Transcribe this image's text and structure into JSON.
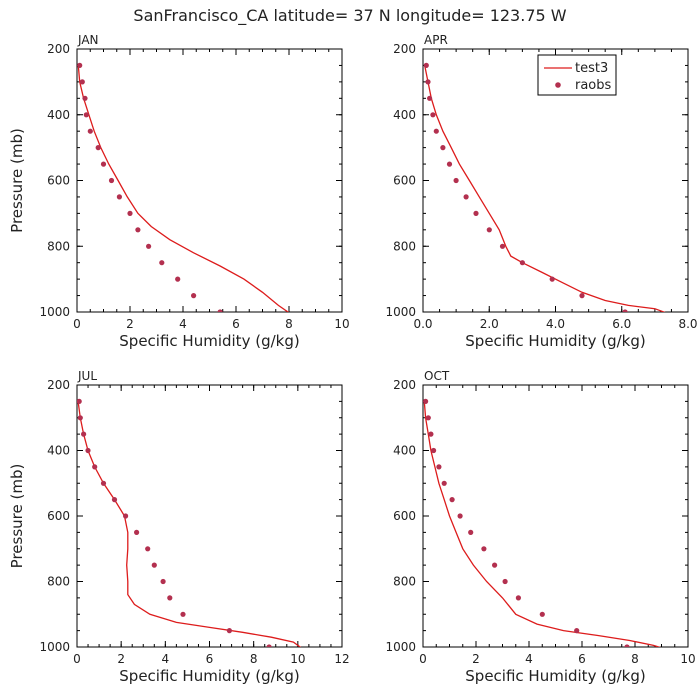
{
  "figure_title": "SanFrancisco_CA  latitude= 37 N longitude= 123.75 W",
  "colors": {
    "model_line": "#dd1c1c",
    "obs_points": "#b3304f",
    "axes": "#000000"
  },
  "chart_data": [
    {
      "type": "line",
      "panel": "JAN",
      "xlabel": "Specific Humidity (g/kg)",
      "ylabel": "Pressure (mb)",
      "xlim": [
        0,
        10
      ],
      "ylim": [
        1000,
        200
      ],
      "x_ticks": [
        0,
        2,
        4,
        6,
        8,
        10
      ],
      "x_tick_labels": [
        "0",
        "2",
        "4",
        "6",
        "8",
        "10"
      ],
      "y_ticks": [
        200,
        400,
        600,
        800,
        1000
      ],
      "y_tick_labels": [
        "200",
        "400",
        "600",
        "800",
        "1000"
      ],
      "legend": false,
      "series": [
        {
          "name": "test3",
          "kind": "line",
          "points": [
            [
              0.05,
              250
            ],
            [
              0.1,
              300
            ],
            [
              0.25,
              350
            ],
            [
              0.45,
              400
            ],
            [
              0.65,
              450
            ],
            [
              0.9,
              500
            ],
            [
              1.2,
              550
            ],
            [
              1.55,
              600
            ],
            [
              1.9,
              650
            ],
            [
              2.3,
              700
            ],
            [
              2.8,
              740
            ],
            [
              3.5,
              780
            ],
            [
              4.4,
              820
            ],
            [
              5.4,
              860
            ],
            [
              6.3,
              900
            ],
            [
              7.0,
              940
            ],
            [
              7.6,
              980
            ],
            [
              8.05,
              1005
            ]
          ]
        },
        {
          "name": "raobs",
          "kind": "scatter",
          "points": [
            [
              0.1,
              250
            ],
            [
              0.2,
              300
            ],
            [
              0.3,
              350
            ],
            [
              0.35,
              400
            ],
            [
              0.5,
              450
            ],
            [
              0.8,
              500
            ],
            [
              1.0,
              550
            ],
            [
              1.3,
              600
            ],
            [
              1.6,
              650
            ],
            [
              2.0,
              700
            ],
            [
              2.3,
              750
            ],
            [
              2.7,
              800
            ],
            [
              3.2,
              850
            ],
            [
              3.8,
              900
            ],
            [
              4.4,
              950
            ],
            [
              5.4,
              1000
            ]
          ]
        }
      ]
    },
    {
      "type": "line",
      "panel": "APR",
      "xlabel": "Specific Humidity (g/kg)",
      "ylabel": "",
      "xlim": [
        0,
        8
      ],
      "ylim": [
        1000,
        200
      ],
      "x_ticks": [
        0,
        2,
        4,
        6,
        8
      ],
      "x_tick_labels": [
        "0.0",
        "2.0",
        "4.0",
        "6.0",
        "8.0"
      ],
      "y_ticks": [
        200,
        400,
        600,
        800,
        1000
      ],
      "y_tick_labels": [
        "200",
        "400",
        "600",
        "800",
        "1000"
      ],
      "legend": true,
      "legend_position": "top-right",
      "legend_entries": [
        "test3",
        "raobs"
      ],
      "series": [
        {
          "name": "test3",
          "kind": "line",
          "points": [
            [
              0.05,
              250
            ],
            [
              0.15,
              300
            ],
            [
              0.25,
              350
            ],
            [
              0.4,
              400
            ],
            [
              0.6,
              450
            ],
            [
              0.85,
              500
            ],
            [
              1.1,
              550
            ],
            [
              1.4,
              600
            ],
            [
              1.7,
              650
            ],
            [
              2.0,
              700
            ],
            [
              2.3,
              750
            ],
            [
              2.5,
              800
            ],
            [
              2.65,
              830
            ],
            [
              3.0,
              850
            ],
            [
              3.6,
              880
            ],
            [
              4.2,
              910
            ],
            [
              4.8,
              940
            ],
            [
              5.5,
              965
            ],
            [
              6.2,
              980
            ],
            [
              7.0,
              990
            ],
            [
              7.4,
              1005
            ]
          ]
        },
        {
          "name": "raobs",
          "kind": "scatter",
          "points": [
            [
              0.1,
              250
            ],
            [
              0.15,
              300
            ],
            [
              0.2,
              350
            ],
            [
              0.3,
              400
            ],
            [
              0.4,
              450
            ],
            [
              0.6,
              500
            ],
            [
              0.8,
              550
            ],
            [
              1.0,
              600
            ],
            [
              1.3,
              650
            ],
            [
              1.6,
              700
            ],
            [
              2.0,
              750
            ],
            [
              2.4,
              800
            ],
            [
              3.0,
              850
            ],
            [
              3.9,
              900
            ],
            [
              4.8,
              950
            ],
            [
              6.1,
              1000
            ]
          ]
        }
      ]
    },
    {
      "type": "line",
      "panel": "JUL",
      "xlabel": "Specific Humidity (g/kg)",
      "ylabel": "Pressure (mb)",
      "xlim": [
        0,
        12
      ],
      "ylim": [
        1000,
        200
      ],
      "x_ticks": [
        0,
        2,
        4,
        6,
        8,
        10,
        12
      ],
      "x_tick_labels": [
        "0",
        "2",
        "4",
        "6",
        "8",
        "10",
        "12"
      ],
      "y_ticks": [
        200,
        400,
        600,
        800,
        1000
      ],
      "y_tick_labels": [
        "200",
        "400",
        "600",
        "800",
        "1000"
      ],
      "legend": false,
      "series": [
        {
          "name": "test3",
          "kind": "line",
          "points": [
            [
              0.05,
              250
            ],
            [
              0.15,
              300
            ],
            [
              0.3,
              350
            ],
            [
              0.5,
              400
            ],
            [
              0.8,
              450
            ],
            [
              1.2,
              500
            ],
            [
              1.7,
              550
            ],
            [
              2.15,
              600
            ],
            [
              2.3,
              650
            ],
            [
              2.3,
              700
            ],
            [
              2.25,
              750
            ],
            [
              2.3,
              800
            ],
            [
              2.3,
              840
            ],
            [
              2.6,
              870
            ],
            [
              3.3,
              900
            ],
            [
              4.5,
              925
            ],
            [
              6.0,
              940
            ],
            [
              7.5,
              955
            ],
            [
              8.8,
              970
            ],
            [
              9.8,
              985
            ],
            [
              10.2,
              1005
            ]
          ]
        },
        {
          "name": "raobs",
          "kind": "scatter",
          "points": [
            [
              0.1,
              250
            ],
            [
              0.15,
              300
            ],
            [
              0.3,
              350
            ],
            [
              0.5,
              400
            ],
            [
              0.8,
              450
            ],
            [
              1.2,
              500
            ],
            [
              1.7,
              550
            ],
            [
              2.2,
              600
            ],
            [
              2.7,
              650
            ],
            [
              3.2,
              700
            ],
            [
              3.5,
              750
            ],
            [
              3.9,
              800
            ],
            [
              4.2,
              850
            ],
            [
              4.8,
              900
            ],
            [
              6.9,
              950
            ],
            [
              8.7,
              1000
            ]
          ]
        }
      ]
    },
    {
      "type": "line",
      "panel": "OCT",
      "xlabel": "Specific Humidity (g/kg)",
      "ylabel": "",
      "xlim": [
        0,
        10
      ],
      "ylim": [
        1000,
        200
      ],
      "x_ticks": [
        0,
        2,
        4,
        6,
        8,
        10
      ],
      "x_tick_labels": [
        "0",
        "2",
        "4",
        "6",
        "8",
        "10"
      ],
      "y_ticks": [
        200,
        400,
        600,
        800,
        1000
      ],
      "y_tick_labels": [
        "200",
        "400",
        "600",
        "800",
        "1000"
      ],
      "legend": false,
      "series": [
        {
          "name": "test3",
          "kind": "line",
          "points": [
            [
              0.05,
              250
            ],
            [
              0.1,
              300
            ],
            [
              0.2,
              350
            ],
            [
              0.3,
              400
            ],
            [
              0.45,
              450
            ],
            [
              0.6,
              500
            ],
            [
              0.8,
              550
            ],
            [
              1.0,
              600
            ],
            [
              1.25,
              650
            ],
            [
              1.5,
              700
            ],
            [
              1.9,
              750
            ],
            [
              2.4,
              800
            ],
            [
              3.0,
              850
            ],
            [
              3.5,
              900
            ],
            [
              4.3,
              930
            ],
            [
              5.3,
              950
            ],
            [
              6.6,
              965
            ],
            [
              7.8,
              980
            ],
            [
              8.7,
              995
            ],
            [
              9.3,
              1010
            ]
          ]
        },
        {
          "name": "raobs",
          "kind": "scatter",
          "points": [
            [
              0.1,
              250
            ],
            [
              0.2,
              300
            ],
            [
              0.3,
              350
            ],
            [
              0.4,
              400
            ],
            [
              0.6,
              450
            ],
            [
              0.8,
              500
            ],
            [
              1.1,
              550
            ],
            [
              1.4,
              600
            ],
            [
              1.8,
              650
            ],
            [
              2.3,
              700
            ],
            [
              2.7,
              750
            ],
            [
              3.1,
              800
            ],
            [
              3.6,
              850
            ],
            [
              4.5,
              900
            ],
            [
              5.8,
              950
            ],
            [
              7.7,
              1000
            ]
          ]
        }
      ]
    }
  ]
}
